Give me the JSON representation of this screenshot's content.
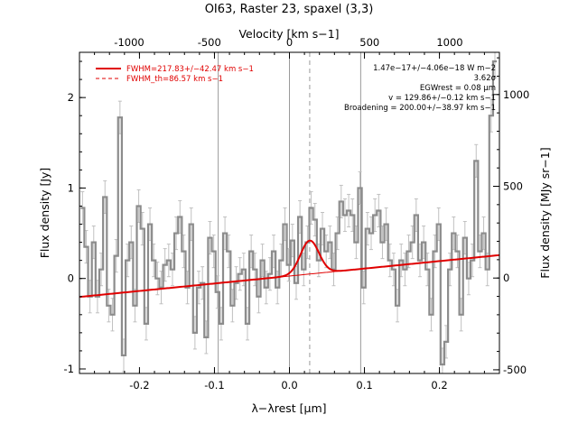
{
  "chart_data": {
    "type": "line",
    "title": "OI63, Raster 23, spaxel (3,3)",
    "xlabel": "λ−λrest [μm]",
    "ylabel": "Flux density [Jy]",
    "x2label": "Velocity [km s−1]",
    "y2label": "Flux density [MJy sr−1]",
    "xlim": [
      -0.28,
      0.28
    ],
    "ylim": [
      -1.05,
      2.5
    ],
    "x2lim": [
      -1310,
      1310
    ],
    "y2lim": [
      -520,
      1230
    ],
    "x_ticks": [
      -0.2,
      -0.1,
      0.0,
      0.1,
      0.2
    ],
    "x_tick_labels": [
      "-0.2",
      "-0.1",
      "0.0",
      "0.1",
      "0.2"
    ],
    "y_ticks": [
      -1,
      0,
      1,
      2
    ],
    "y_tick_labels": [
      "-1",
      "0",
      "1",
      "2"
    ],
    "x2_ticks": [
      -1000,
      -500,
      0,
      500,
      1000
    ],
    "x2_tick_labels": [
      "-1000",
      "-500",
      "0",
      "500",
      "1000"
    ],
    "y2_ticks": [
      -500,
      0,
      500,
      1000
    ],
    "y2_tick_labels": [
      "-500",
      "0",
      "500",
      "1000"
    ],
    "vlines": {
      "solid": [
        -0.095,
        0.0,
        0.095
      ],
      "dashed": [
        0.027
      ]
    },
    "legend": {
      "placement": "top-left",
      "entries": [
        {
          "label": "FWHM=217.83+/−42.47 km s−1",
          "style": "solid"
        },
        {
          "label": "FWHM_th=86.57 km s−1",
          "style": "dashed"
        }
      ]
    },
    "annotations": [
      "1.47e−17+/−4.06e−18 W m−2",
      "3.62σ",
      "EGWrest = 0.08 μm",
      "v = 129.86+/−0.12 km s−1",
      "Broadening = 200.00+/−38.97 km s−1"
    ],
    "grid": false,
    "colors": {
      "data": "#8c8c8c",
      "error_bars": "#c0c0c0",
      "fit": "#e00000",
      "component": "#e8a060"
    },
    "continuum": {
      "slope": 0.825,
      "intercept": 0.027
    },
    "gaussian": {
      "center": 0.027,
      "sigma": 0.0123,
      "amplitude": 0.37
    },
    "series": [
      {
        "name": "data",
        "x": [
          -0.276,
          -0.271,
          -0.266,
          -0.261,
          -0.256,
          -0.251,
          -0.246,
          -0.241,
          -0.236,
          -0.231,
          -0.226,
          -0.221,
          -0.216,
          -0.211,
          -0.206,
          -0.201,
          -0.196,
          -0.191,
          -0.186,
          -0.181,
          -0.176,
          -0.171,
          -0.166,
          -0.161,
          -0.156,
          -0.151,
          -0.146,
          -0.141,
          -0.136,
          -0.131,
          -0.126,
          -0.121,
          -0.116,
          -0.111,
          -0.106,
          -0.101,
          -0.096,
          -0.091,
          -0.086,
          -0.081,
          -0.076,
          -0.071,
          -0.066,
          -0.061,
          -0.056,
          -0.051,
          -0.046,
          -0.041,
          -0.036,
          -0.031,
          -0.026,
          -0.021,
          -0.016,
          -0.011,
          -0.006,
          -0.001,
          0.004,
          0.009,
          0.014,
          0.019,
          0.024,
          0.029,
          0.034,
          0.039,
          0.044,
          0.049,
          0.054,
          0.059,
          0.064,
          0.069,
          0.074,
          0.079,
          0.084,
          0.089,
          0.094,
          0.099,
          0.104,
          0.109,
          0.114,
          0.119,
          0.124,
          0.129,
          0.134,
          0.139,
          0.144,
          0.149,
          0.154,
          0.159,
          0.164,
          0.169,
          0.174,
          0.179,
          0.184,
          0.189,
          0.194,
          0.199,
          0.204,
          0.209,
          0.214,
          0.219,
          0.224,
          0.229,
          0.234,
          0.239,
          0.244,
          0.249,
          0.254,
          0.259,
          0.264,
          0.269,
          0.274
        ],
        "values": [
          0.78,
          0.35,
          -0.2,
          0.4,
          -0.2,
          0.1,
          0.9,
          -0.3,
          -0.4,
          0.25,
          1.78,
          -0.85,
          0.2,
          0.4,
          -0.3,
          0.8,
          0.55,
          -0.5,
          0.6,
          0.2,
          0.0,
          -0.1,
          0.15,
          0.2,
          0.1,
          0.5,
          0.68,
          0.3,
          -0.1,
          0.6,
          -0.6,
          -0.1,
          -0.05,
          -0.65,
          0.45,
          0.3,
          -0.15,
          -0.5,
          0.5,
          0.3,
          -0.3,
          -0.05,
          0.05,
          0.1,
          -0.5,
          0.3,
          0.1,
          -0.2,
          0.2,
          -0.1,
          0.05,
          0.3,
          -0.1,
          0.2,
          0.6,
          0.15,
          0.42,
          -0.05,
          0.68,
          0.1,
          0.4,
          0.78,
          0.65,
          0.2,
          0.55,
          0.3,
          0.4,
          0.1,
          0.5,
          0.85,
          0.7,
          0.75,
          0.7,
          0.4,
          1.0,
          -0.1,
          0.55,
          0.5,
          0.7,
          0.75,
          0.4,
          0.6,
          0.2,
          0.1,
          -0.3,
          0.2,
          0.1,
          0.3,
          0.4,
          0.7,
          0.2,
          0.4,
          0.1,
          -0.4,
          0.3,
          0.6,
          -0.95,
          -0.7,
          0.1,
          0.5,
          0.3,
          -0.4,
          0.45,
          0.0,
          0.2,
          1.3,
          0.3,
          0.5,
          0.1,
          1.8,
          2.4
        ],
        "errors": [
          0.18,
          0.18,
          0.18,
          0.18,
          0.18,
          0.18,
          0.18,
          0.18,
          0.18,
          0.18,
          0.18,
          0.18,
          0.18,
          0.18,
          0.18,
          0.18,
          0.18,
          0.18,
          0.18,
          0.18,
          0.18,
          0.18,
          0.18,
          0.18,
          0.18,
          0.18,
          0.18,
          0.18,
          0.18,
          0.18,
          0.18,
          0.18,
          0.18,
          0.18,
          0.18,
          0.18,
          0.18,
          0.18,
          0.18,
          0.18,
          0.18,
          0.18,
          0.18,
          0.18,
          0.18,
          0.18,
          0.18,
          0.18,
          0.18,
          0.18,
          0.18,
          0.18,
          0.18,
          0.18,
          0.18,
          0.18,
          0.18,
          0.18,
          0.18,
          0.18,
          0.18,
          0.18,
          0.18,
          0.18,
          0.18,
          0.18,
          0.18,
          0.18,
          0.18,
          0.18,
          0.18,
          0.18,
          0.18,
          0.18,
          0.18,
          0.18,
          0.18,
          0.18,
          0.18,
          0.18,
          0.18,
          0.18,
          0.18,
          0.18,
          0.18,
          0.18,
          0.18,
          0.18,
          0.18,
          0.18,
          0.18,
          0.18,
          0.18,
          0.18,
          0.18,
          0.18,
          0.18,
          0.18,
          0.18,
          0.18,
          0.18,
          0.18,
          0.18,
          0.18,
          0.18,
          0.18,
          0.18,
          0.18,
          0.18,
          0.18,
          0.18
        ]
      }
    ]
  }
}
